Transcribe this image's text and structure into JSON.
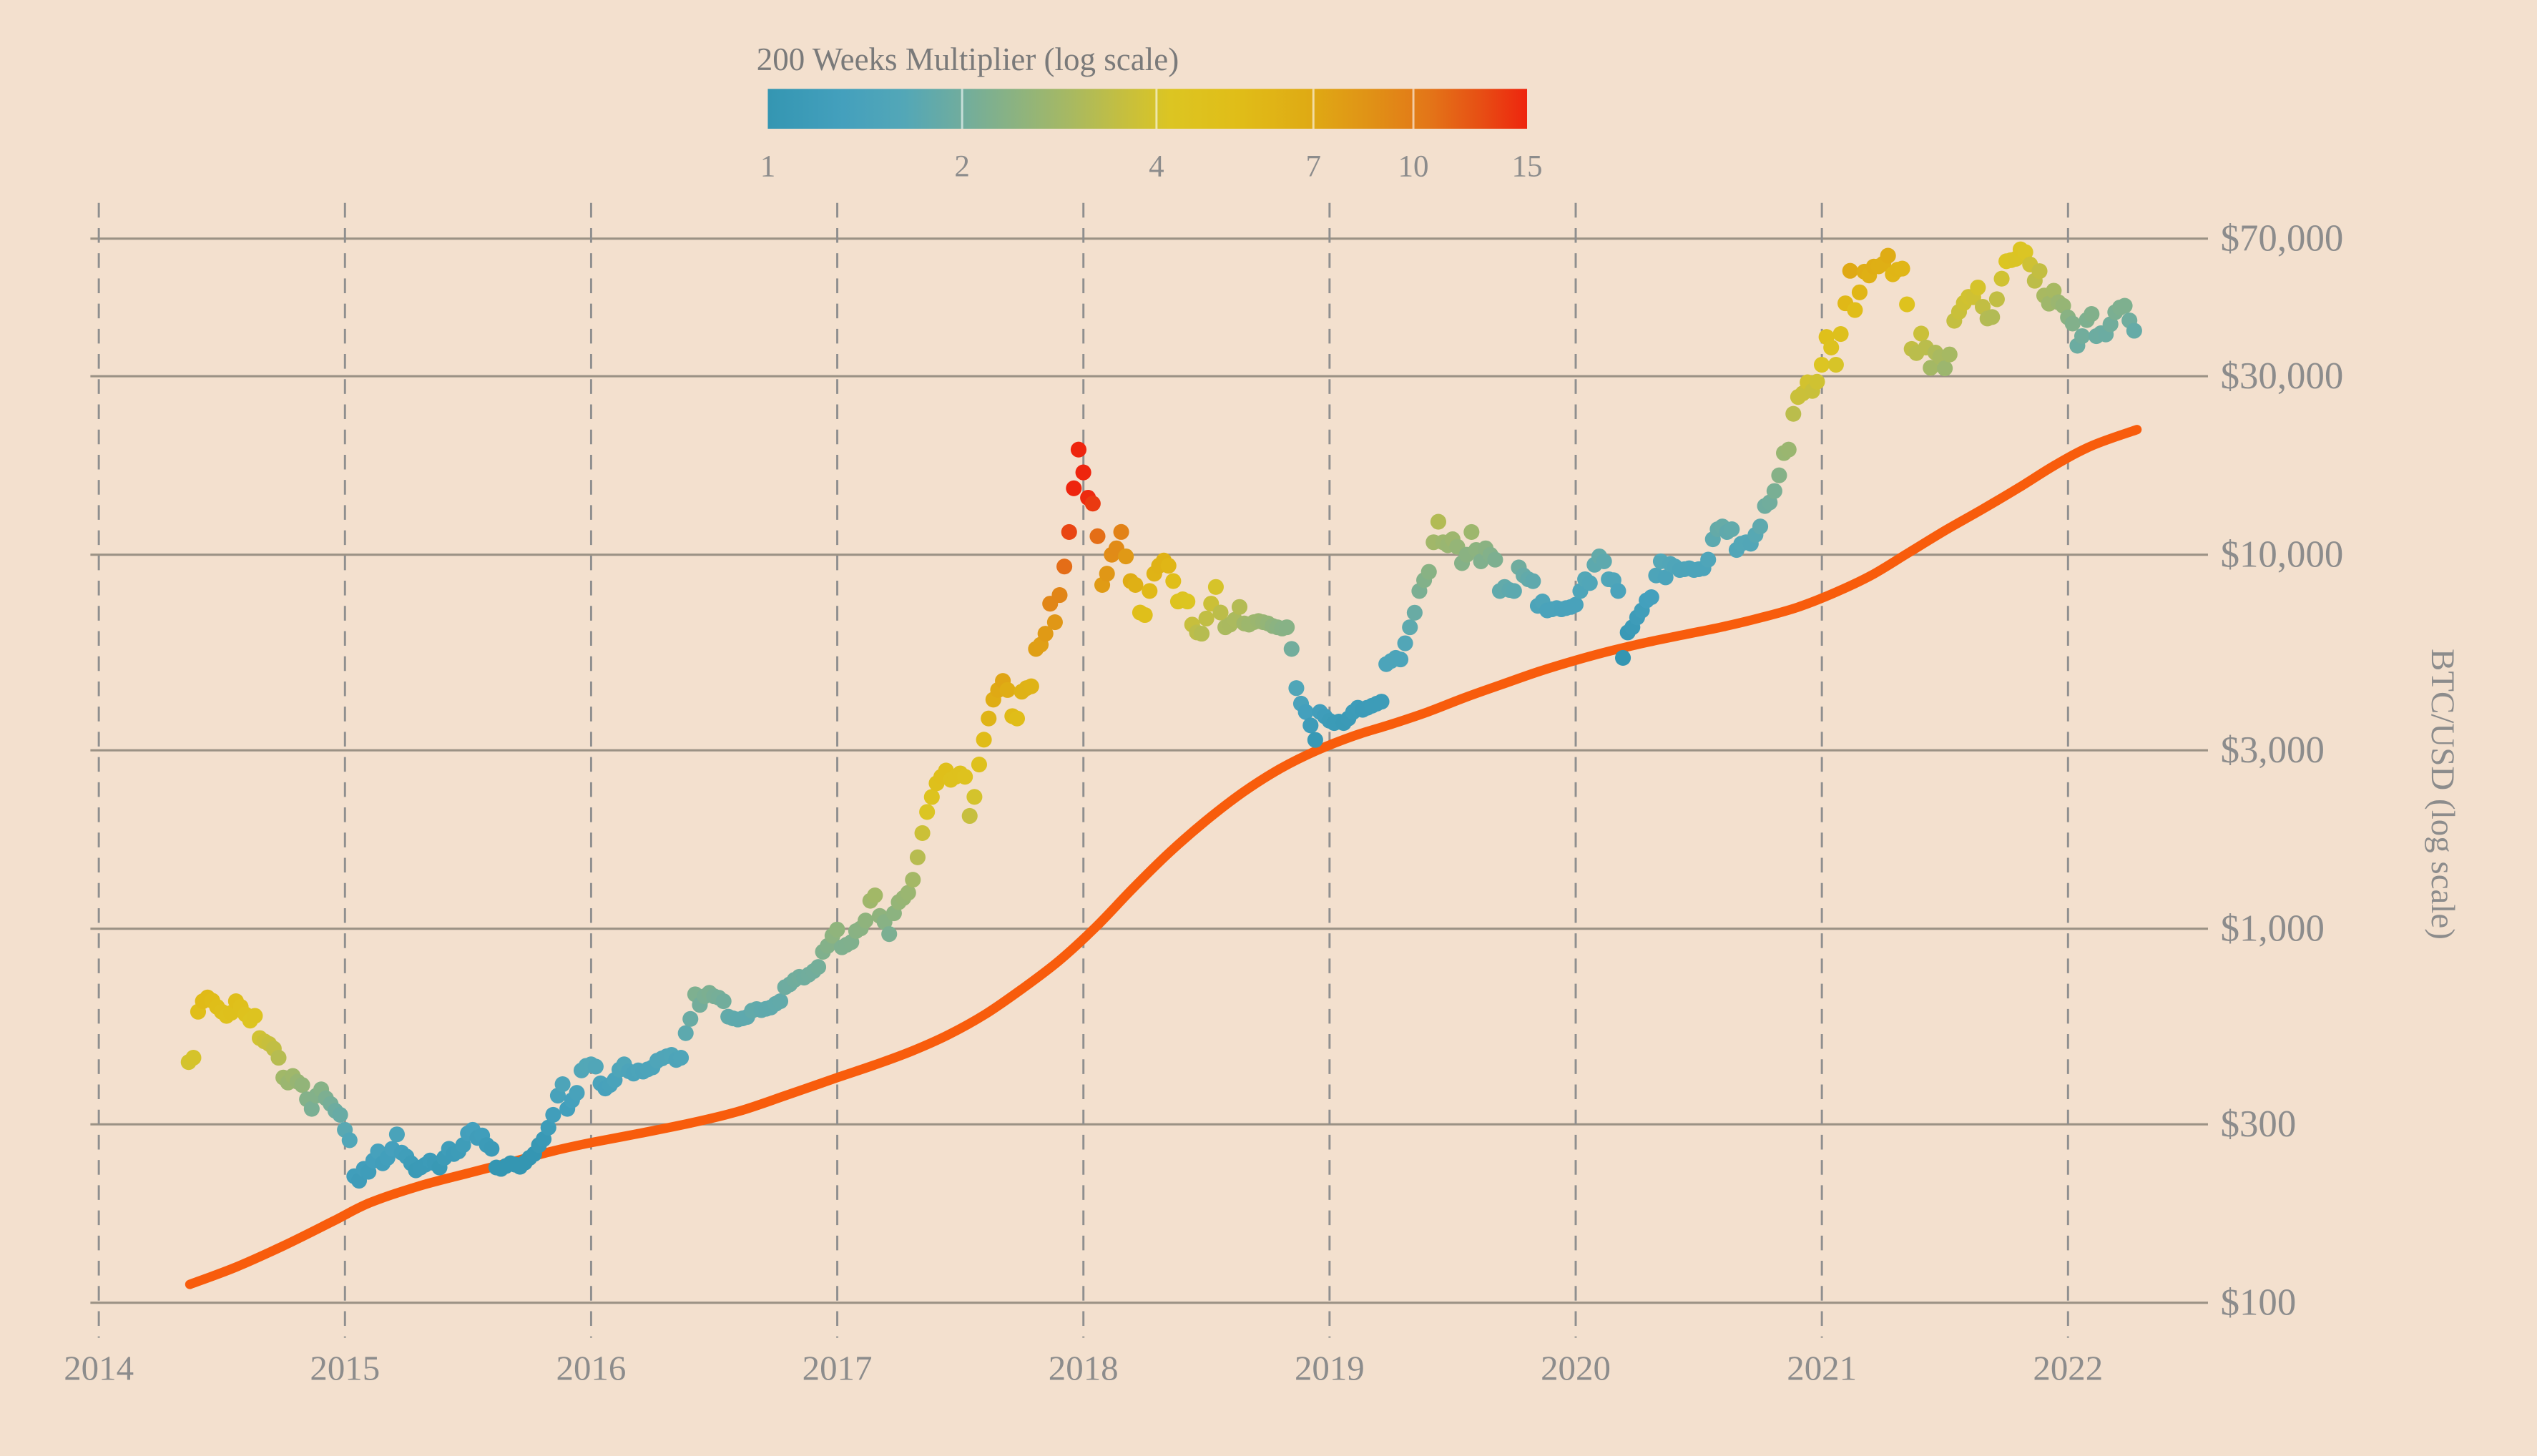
{
  "chart_data": {
    "type": "scatter",
    "title": "",
    "colorbar": {
      "title": "200 Weeks Multiplier (log scale)",
      "scale": "log",
      "min": 1,
      "max": 15,
      "ticks": [
        1,
        2,
        4,
        7,
        10,
        15
      ],
      "stops": [
        [
          0.0,
          "#3496b2"
        ],
        [
          0.1,
          "#44a0bd"
        ],
        [
          0.18,
          "#53a7b7"
        ],
        [
          0.26,
          "#72ad9c"
        ],
        [
          0.33,
          "#8db37f"
        ],
        [
          0.4,
          "#a8b961"
        ],
        [
          0.47,
          "#c6bf3e"
        ],
        [
          0.53,
          "#dcc522"
        ],
        [
          0.62,
          "#e0bd18"
        ],
        [
          0.71,
          "#dfab14"
        ],
        [
          0.79,
          "#e09316"
        ],
        [
          0.87,
          "#e37618"
        ],
        [
          0.94,
          "#e74e14"
        ],
        [
          1.0,
          "#ee250e"
        ]
      ]
    },
    "x_axis": {
      "ticks": [
        2014,
        2015,
        2016,
        2017,
        2018,
        2019,
        2020,
        2021,
        2022
      ],
      "range": [
        2013.97,
        2022.6
      ],
      "gridline_style": "dashed-vertical"
    },
    "y_axis": {
      "label": "BTC/USD (log scale)",
      "scale": "log",
      "range": [
        100,
        87000
      ],
      "ticks": [
        {
          "value": 70000,
          "label": "$70,000"
        },
        {
          "value": 30000,
          "label": "$30,000"
        },
        {
          "value": 10000,
          "label": "$10,000"
        },
        {
          "value": 3000,
          "label": "$3,000"
        },
        {
          "value": 1000,
          "label": "$1,000"
        },
        {
          "value": 300,
          "label": "$300"
        },
        {
          "value": 100,
          "label": "$100"
        }
      ]
    },
    "series": [
      {
        "name": "BTC/USD weekly close, colored by 200-week multiplier",
        "type": "scatter",
        "start_year": 2014.365,
        "step_years": 0.0192308,
        "prices": [
          440,
          452,
          600,
          640,
          655,
          642,
          618,
          600,
          585,
          596,
          640,
          618,
          590,
          568,
          585,
          510,
          500,
          492,
          478,
          452,
          400,
          388,
          404,
          390,
          382,
          350,
          330,
          358,
          372,
          352,
          340,
          326,
          318,
          290,
          272,
          218,
          212,
          228,
          224,
          240,
          254,
          236,
          244,
          258,
          282,
          252,
          246,
          236,
          226,
          230,
          234,
          240,
          236,
          230,
          244,
          258,
          250,
          254,
          264,
          284,
          290,
          276,
          280,
          264,
          258,
          230,
          228,
          232,
          236,
          234,
          231,
          237,
          244,
          250,
          264,
          274,
          294,
          318,
          358,
          384,
          330,
          348,
          364,
          418,
          430,
          434,
          428,
          386,
          374,
          382,
          394,
          420,
          434,
          416,
          410,
          418,
          415,
          421,
          426,
          444,
          450,
          456,
          460,
          446,
          452,
          526,
          574,
          668,
          626,
          660,
          674,
          660,
          654,
          640,
          582,
          576,
          572,
          576,
          581,
          604,
          610,
          606,
          611,
          616,
          630,
          640,
          698,
          710,
          730,
          744,
          740,
          754,
          770,
          790,
          868,
          900,
          958,
          995,
          892,
          906,
          921,
          986,
          1002,
          1052,
          1188,
          1228,
          1082,
          1042,
          968,
          1100,
          1178,
          1208,
          1248,
          1352,
          1552,
          1802,
          2052,
          2250,
          2448,
          2548,
          2648,
          2502,
          2548,
          2602,
          2548,
          2002,
          2252,
          2748,
          3202,
          3648,
          4098,
          4348,
          4598,
          4348,
          3702,
          3648,
          4302,
          4398,
          4448,
          5598,
          5748,
          6148,
          7398,
          6598,
          7798,
          9298,
          11498,
          15048,
          19098,
          16598,
          14198,
          13702,
          11202,
          8302,
          8898,
          10002,
          10398,
          11502,
          9898,
          8502,
          8302,
          7002,
          6898,
          7998,
          8898,
          9348,
          9648,
          9348,
          8502,
          7498,
          7598,
          7498,
          6502,
          6198,
          6148,
          6748,
          7398,
          8198,
          7002,
          6398,
          6502,
          6698,
          7248,
          6548,
          6502,
          6598,
          6648,
          6598,
          6548,
          6448,
          6398,
          6348,
          6398,
          5598,
          4398,
          3998,
          3798,
          3498,
          3198,
          3798,
          3698,
          3598,
          3548,
          3578,
          3548,
          3648,
          3798,
          3898,
          3848,
          3898,
          3948,
          3998,
          4048,
          5098,
          5198,
          5298,
          5248,
          5798,
          6398,
          6998,
          7998,
          8548,
          8998,
          10798,
          12248,
          10798,
          10598,
          10998,
          10498,
          9498,
          9998,
          11498,
          10298,
          9598,
          10398,
          9998,
          9698,
          7998,
          8198,
          8048,
          7998,
          9248,
          8798,
          8598,
          8498,
          7298,
          7498,
          7098,
          7148,
          7198,
          7148,
          7198,
          7248,
          7348,
          7998,
          8598,
          8398,
          9398,
          9898,
          9598,
          8598,
          8548,
          7998,
          5298,
          6198,
          6398,
          6798,
          7098,
          7548,
          7698,
          8798,
          9598,
          8698,
          9448,
          9298,
          9098,
          9148,
          9198,
          9098,
          9148,
          9198,
          9698,
          10998,
          11698,
          11898,
          11498,
          11698,
          10298,
          10698,
          10798,
          10698,
          11298,
          11898,
          13498,
          13798,
          14798,
          16298,
          18698,
          19098,
          23798,
          26398,
          26998,
          28898,
          27398,
          28998,
          32198,
          38198,
          35798,
          32198,
          38898,
          46998,
          57398,
          45098,
          50298,
          57098,
          55798,
          58898,
          58998,
          59998,
          62998,
          56198,
          57798,
          58198,
          46698,
          35498,
          34598,
          38998,
          35798,
          31598,
          34698,
          33798,
          31498,
          34298,
          42198,
          44598,
          47098,
          48898,
          48798,
          51798,
          45998,
          42798,
          43198,
          48198,
          54698,
          60898,
          61298,
          61798,
          65498,
          64398,
          59698,
          53998,
          57298,
          49298,
          46898,
          50798,
          47298,
          46298,
          43098,
          41498,
          36198,
          38398,
          42398,
          43998,
          38398,
          39098,
          38798,
          41298,
          44498,
          45798,
          46298,
          42298,
          39698
        ]
      },
      {
        "name": "200-week moving average",
        "type": "line",
        "color": "#f85c0c",
        "points": [
          [
            2014.37,
            112
          ],
          [
            2014.55,
            124
          ],
          [
            2014.75,
            142
          ],
          [
            2014.95,
            165
          ],
          [
            2015.1,
            185
          ],
          [
            2015.3,
            205
          ],
          [
            2015.5,
            222
          ],
          [
            2015.7,
            240
          ],
          [
            2015.85,
            255
          ],
          [
            2016.0,
            268
          ],
          [
            2016.2,
            284
          ],
          [
            2016.4,
            302
          ],
          [
            2016.6,
            325
          ],
          [
            2016.8,
            360
          ],
          [
            2017.0,
            400
          ],
          [
            2017.15,
            432
          ],
          [
            2017.3,
            470
          ],
          [
            2017.45,
            520
          ],
          [
            2017.6,
            590
          ],
          [
            2017.75,
            690
          ],
          [
            2017.9,
            820
          ],
          [
            2018.05,
            1010
          ],
          [
            2018.2,
            1280
          ],
          [
            2018.35,
            1600
          ],
          [
            2018.5,
            1950
          ],
          [
            2018.65,
            2320
          ],
          [
            2018.8,
            2680
          ],
          [
            2018.95,
            3000
          ],
          [
            2019.1,
            3280
          ],
          [
            2019.25,
            3520
          ],
          [
            2019.4,
            3800
          ],
          [
            2019.55,
            4150
          ],
          [
            2019.7,
            4500
          ],
          [
            2019.85,
            4870
          ],
          [
            2020.0,
            5220
          ],
          [
            2020.15,
            5550
          ],
          [
            2020.3,
            5850
          ],
          [
            2020.45,
            6130
          ],
          [
            2020.6,
            6420
          ],
          [
            2020.75,
            6780
          ],
          [
            2020.9,
            7230
          ],
          [
            2021.05,
            7900
          ],
          [
            2021.2,
            8800
          ],
          [
            2021.35,
            10100
          ],
          [
            2021.5,
            11600
          ],
          [
            2021.65,
            13200
          ],
          [
            2021.8,
            15100
          ],
          [
            2021.95,
            17400
          ],
          [
            2022.1,
            19600
          ],
          [
            2022.28,
            21600
          ]
        ]
      }
    ],
    "colors": {
      "background": "#f3e0ce",
      "ma_line": "#f85c0c",
      "gridline": "#9b9285",
      "dashed_line": "#8f8f8f",
      "tick_label": "#8c8c8c",
      "title": "#7a7a7a",
      "colorbar_tick_mark": "#ffffff"
    }
  }
}
